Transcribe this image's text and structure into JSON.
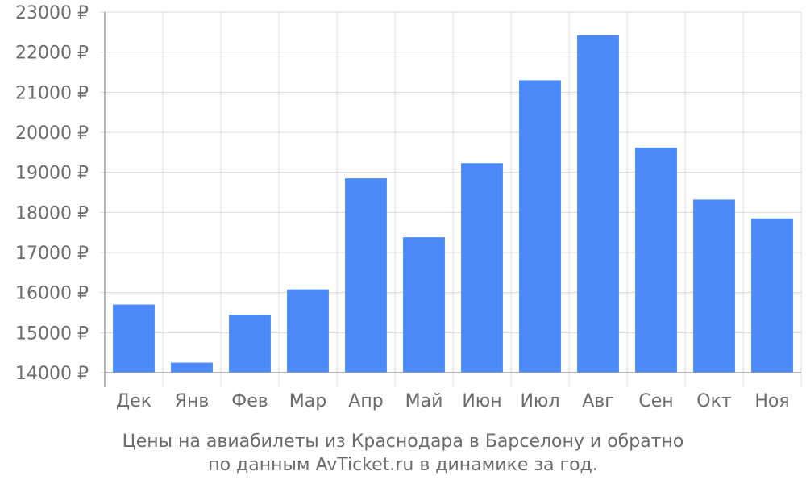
{
  "chart_data": {
    "type": "bar",
    "categories": [
      "Дек",
      "Янв",
      "Фев",
      "Мар",
      "Апр",
      "Май",
      "Июн",
      "Июл",
      "Авг",
      "Сен",
      "Окт",
      "Ноя"
    ],
    "values": [
      15700,
      14250,
      15450,
      16080,
      18850,
      17380,
      19230,
      21300,
      22420,
      19620,
      18320,
      17850
    ],
    "title": "",
    "xlabel": "",
    "ylabel": "",
    "ylim": [
      14000,
      23000
    ],
    "y_ticks": [
      14000,
      15000,
      16000,
      17000,
      18000,
      19000,
      20000,
      21000,
      22000,
      23000
    ],
    "y_tick_suffix": " ₽",
    "grid": true,
    "bar_color": "#4d8af9",
    "caption_lines": [
      "Цены на авиабилеты из Краснодара в Барселону и обратно",
      "по данным AvTicket.ru в динамике за год."
    ]
  }
}
